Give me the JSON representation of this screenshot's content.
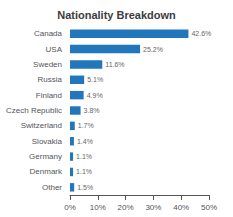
{
  "chart_data": {
    "type": "bar",
    "orientation": "horizontal",
    "title": "Nationality Breakdown",
    "categories": [
      "Canada",
      "USA",
      "Sweden",
      "Russia",
      "Finland",
      "Czech Republic",
      "Switzerland",
      "Slovakia",
      "Germany",
      "Denmark",
      "Other"
    ],
    "values": [
      42.6,
      25.2,
      11.6,
      5.1,
      4.9,
      3.8,
      1.7,
      1.4,
      1.1,
      1.1,
      1.5
    ],
    "value_labels": [
      "42.6%",
      "25.2%",
      "11.6%",
      "5.1%",
      "4.9%",
      "3.8%",
      "1.7%",
      "1.4%",
      "1.1%",
      "1.1%",
      "1.5%"
    ],
    "data_labels": true,
    "color": "#2176bc",
    "xlim": [
      0,
      50
    ],
    "xticks": [
      {
        "value": 0,
        "label": "0%"
      },
      {
        "value": 10,
        "label": "10%"
      },
      {
        "value": 20,
        "label": "20%"
      },
      {
        "value": 30,
        "label": "30%"
      },
      {
        "value": 40,
        "label": "40%"
      },
      {
        "value": 50,
        "label": "50%"
      }
    ],
    "grid": false
  }
}
